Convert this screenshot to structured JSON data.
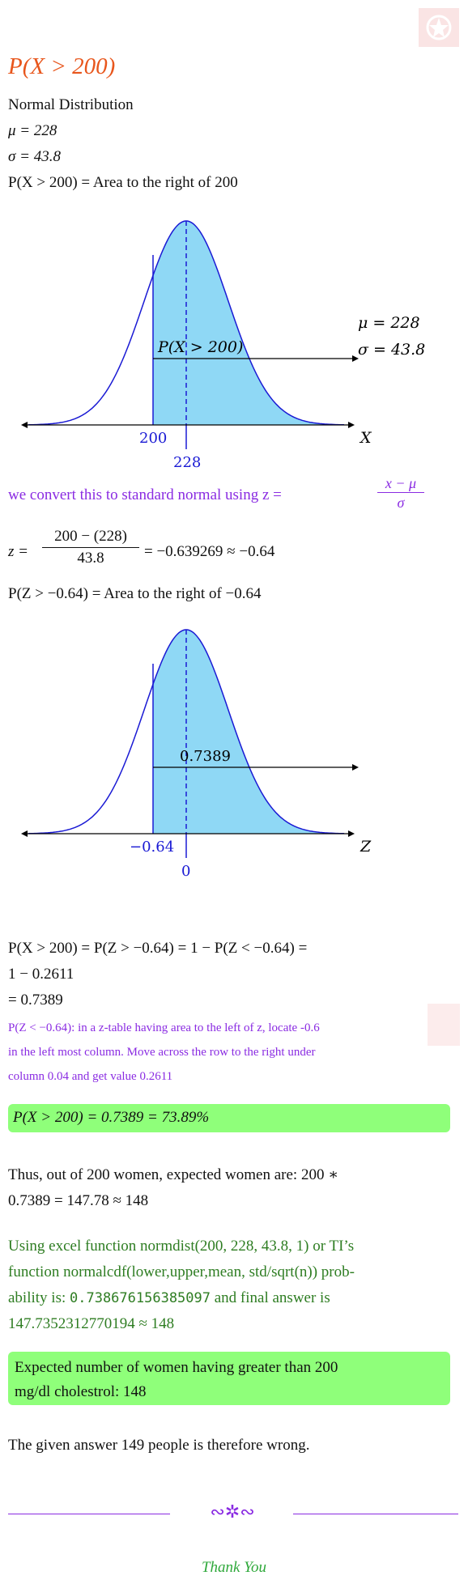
{
  "header": {
    "title": "P(X > 200)",
    "line1": "Normal Distribution",
    "line2": "μ = 228",
    "line3": "σ = 43.8",
    "line4": "P(X > 200) = Area to the right of 200"
  },
  "graph1": {
    "shade_label": "P(X > 200)",
    "mu_label": "μ = 228",
    "sigma_label": "σ = 43.8",
    "axis_label": "X",
    "cut_label": "200",
    "mean_label": "228"
  },
  "conversion": {
    "text": "we convert this to standard normal using z =",
    "num": "x − μ",
    "den": "σ",
    "z_prefix": "z =",
    "z_num": "200 − (228)",
    "z_den": "43.8",
    "z_result": "= −0.639269 ≈ −0.64",
    "area_line": "P(Z > −0.64) = Area to the right of −0.64"
  },
  "graph2": {
    "shade_label": "0.7389",
    "axis_label": "Z",
    "cut_label": "−0.64",
    "mean_label": "0"
  },
  "result": {
    "eq_line1": "P(X > 200) = P(Z > −0.64) = 1 − P(Z < −0.64) =",
    "eq_line2": "1 − 0.2611",
    "eq_line3": "= 0.7389",
    "note_line1": "P(Z < −0.64): in a z-table having area to the left of z, locate -0.6",
    "note_line2": "in the left most column.  Move across the row to the right under",
    "note_line3": "column 0.04 and get value 0.2611",
    "box1": "P(X > 200) = 0.7389 = 73.89%"
  },
  "expected": {
    "line1": "Thus, out of 200 women, expected women are:  200 ∗",
    "line2": "0.7389 = 147.78 ≈ 148"
  },
  "excel": {
    "line1": "Using excel function normdist(200, 228, 43.8, 1) or TI’s",
    "line2": "function normalcdf(lower,upper,mean, std/sqrt(n)) prob-",
    "line3_a": "ability is: ",
    "line3_mono": "0.738676156385097",
    "line3_b": " and final answer is",
    "line4": "147.7352312770194 ≈ 148"
  },
  "final_box": {
    "line1": "Expected number of women having greater than 200",
    "line2": "mg/dl cholestrol:  148"
  },
  "closing": "The given answer 149 people is therefore wrong.",
  "ornament": "∾✲∾",
  "thanks": "Thank You",
  "colors": {
    "title": "#e8561c",
    "curve": "#1a1ad4",
    "shade": "#8fd8f5",
    "purple": "#8a2be2",
    "green": "#2e7d22",
    "box": "#8fff7a",
    "watermark": "#f5cfcf"
  }
}
